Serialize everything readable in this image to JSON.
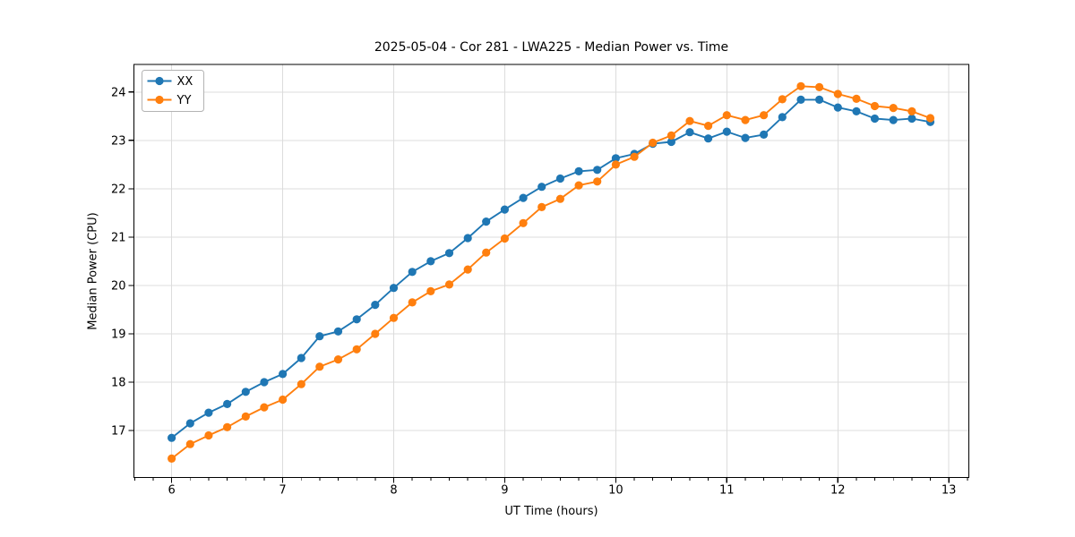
{
  "chart_data": {
    "type": "line",
    "title": "2025-05-04 - Cor 281 - LWA225 - Median Power vs. Time",
    "xlabel": "UT Time (hours)",
    "ylabel": "Median Power (CPU)",
    "x": [
      6.0,
      6.167,
      6.333,
      6.5,
      6.667,
      6.833,
      7.0,
      7.167,
      7.333,
      7.5,
      7.667,
      7.833,
      8.0,
      8.167,
      8.333,
      8.5,
      8.667,
      8.833,
      9.0,
      9.167,
      9.333,
      9.5,
      9.667,
      9.833,
      10.0,
      10.167,
      10.333,
      10.5,
      10.667,
      10.833,
      11.0,
      11.167,
      11.333,
      11.5,
      11.667,
      11.833,
      12.0,
      12.167,
      12.333,
      12.5,
      12.667,
      12.833
    ],
    "series": [
      {
        "name": "XX",
        "color": "#1f77b4",
        "marker": "circle",
        "values": [
          16.85,
          17.15,
          17.37,
          17.55,
          17.8,
          18.0,
          18.17,
          18.5,
          18.95,
          19.05,
          19.3,
          19.6,
          19.95,
          20.28,
          20.5,
          20.67,
          20.98,
          21.32,
          21.57,
          21.81,
          22.04,
          22.21,
          22.36,
          22.39,
          22.63,
          22.72,
          22.93,
          22.97,
          23.17,
          23.04,
          23.18,
          23.05,
          23.12,
          23.48,
          23.84,
          23.84,
          23.68,
          23.6,
          23.45,
          23.42,
          23.45,
          23.38
        ]
      },
      {
        "name": "YY",
        "color": "#ff7f0e",
        "marker": "circle",
        "values": [
          16.42,
          16.72,
          16.9,
          17.07,
          17.29,
          17.48,
          17.64,
          17.96,
          18.32,
          18.47,
          18.68,
          19.0,
          19.33,
          19.65,
          19.88,
          20.02,
          20.33,
          20.68,
          20.97,
          21.29,
          21.62,
          21.79,
          22.07,
          22.15,
          22.5,
          22.66,
          22.95,
          23.1,
          23.4,
          23.3,
          23.52,
          23.42,
          23.52,
          23.85,
          24.12,
          24.1,
          23.96,
          23.86,
          23.71,
          23.67,
          23.6,
          23.46
        ]
      }
    ],
    "xlim": [
      5.66,
      13.18
    ],
    "ylim": [
      16.03,
      24.57
    ],
    "x_major_ticks": [
      6,
      7,
      8,
      9,
      10,
      11,
      12,
      13
    ],
    "x_minor_tick_step": 0.166667,
    "y_major_ticks": [
      17,
      18,
      19,
      20,
      21,
      22,
      23,
      24
    ],
    "grid": true,
    "grid_color": "#dcdcdc",
    "legend": {
      "position": "upper left",
      "entries": [
        "XX",
        "YY"
      ]
    }
  }
}
